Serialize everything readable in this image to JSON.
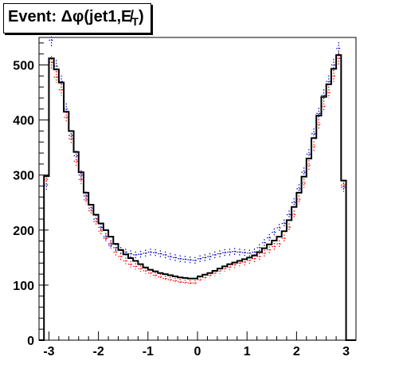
{
  "chart_data": {
    "type": "histogram",
    "title": "Event: Δφ(jet1,E̸T)",
    "title_parts": {
      "prefix": "Event: Δφ(jet1,",
      "symbol": "E̸",
      "subscript": "T",
      "suffix": ")"
    },
    "xlim": [
      -3.2,
      3.2
    ],
    "ylim": [
      0,
      550
    ],
    "x_ticks": [
      -3,
      -2,
      -1,
      0,
      1,
      2,
      3
    ],
    "x_tick_labels": [
      "-3",
      "-2",
      "-1",
      "0",
      "1",
      "2",
      "3"
    ],
    "y_ticks": [
      0,
      100,
      200,
      300,
      400,
      500
    ],
    "y_tick_labels": [
      "0",
      "100",
      "200",
      "300",
      "400",
      "500"
    ],
    "grid": false,
    "legend": "none",
    "bin_edges": [
      -3.2,
      -3.1,
      -3.0,
      -2.9,
      -2.8,
      -2.7,
      -2.6,
      -2.5,
      -2.4,
      -2.3,
      -2.2,
      -2.1,
      -2.0,
      -1.9,
      -1.8,
      -1.7,
      -1.6,
      -1.5,
      -1.4,
      -1.3,
      -1.2,
      -1.1,
      -1.0,
      -0.9,
      -0.8,
      -0.7,
      -0.6,
      -0.5,
      -0.4,
      -0.3,
      -0.2,
      -0.1,
      0.0,
      0.1,
      0.2,
      0.3,
      0.4,
      0.5,
      0.6,
      0.7,
      0.8,
      0.9,
      1.0,
      1.1,
      1.2,
      1.3,
      1.4,
      1.5,
      1.6,
      1.7,
      1.8,
      1.9,
      2.0,
      2.1,
      2.2,
      2.3,
      2.4,
      2.5,
      2.6,
      2.7,
      2.8,
      2.9,
      3.0,
      3.1,
      3.2
    ],
    "series": [
      {
        "style": "solid-histogram",
        "color": "#000000",
        "values": [
          0,
          298,
          512,
          492,
          468,
          415,
          380,
          342,
          305,
          268,
          246,
          228,
          212,
          200,
          188,
          175,
          164,
          156,
          149,
          144,
          138,
          132,
          128,
          125,
          122,
          120,
          118,
          116,
          114,
          113,
          112,
          112,
          116,
          119,
          122,
          126,
          130,
          134,
          138,
          141,
          144,
          147,
          150,
          154,
          160,
          167,
          174,
          181,
          188,
          198,
          218,
          242,
          268,
          297,
          330,
          367,
          408,
          442,
          465,
          493,
          518,
          290,
          0,
          0
        ]
      },
      {
        "style": "dotted-errorbar",
        "color": "#ff0000",
        "values": [
          0,
          292,
          505,
          478,
          455,
          405,
          366,
          325,
          292,
          255,
          235,
          215,
          198,
          185,
          172,
          160,
          152,
          144,
          138,
          134,
          130,
          126,
          122,
          118,
          115,
          112,
          110,
          108,
          106,
          105,
          104,
          104,
          110,
          114,
          118,
          122,
          126,
          130,
          133,
          137,
          140,
          142,
          145,
          148,
          152,
          158,
          164,
          170,
          175,
          185,
          205,
          228,
          255,
          285,
          318,
          352,
          392,
          425,
          450,
          480,
          512,
          282,
          0,
          0
        ]
      },
      {
        "style": "dotted-errorbar",
        "color": "#0000bb",
        "values": [
          0,
          282,
          545,
          498,
          470,
          420,
          372,
          335,
          300,
          262,
          240,
          220,
          205,
          188,
          175,
          168,
          163,
          160,
          157,
          155,
          156,
          158,
          160,
          159,
          157,
          155,
          152,
          150,
          148,
          147,
          146,
          145,
          148,
          150,
          152,
          155,
          157,
          159,
          160,
          161,
          160,
          159,
          158,
          160,
          168,
          177,
          186,
          196,
          204,
          212,
          228,
          250,
          275,
          305,
          338,
          375,
          412,
          445,
          470,
          500,
          530,
          278,
          0,
          0
        ]
      }
    ]
  }
}
